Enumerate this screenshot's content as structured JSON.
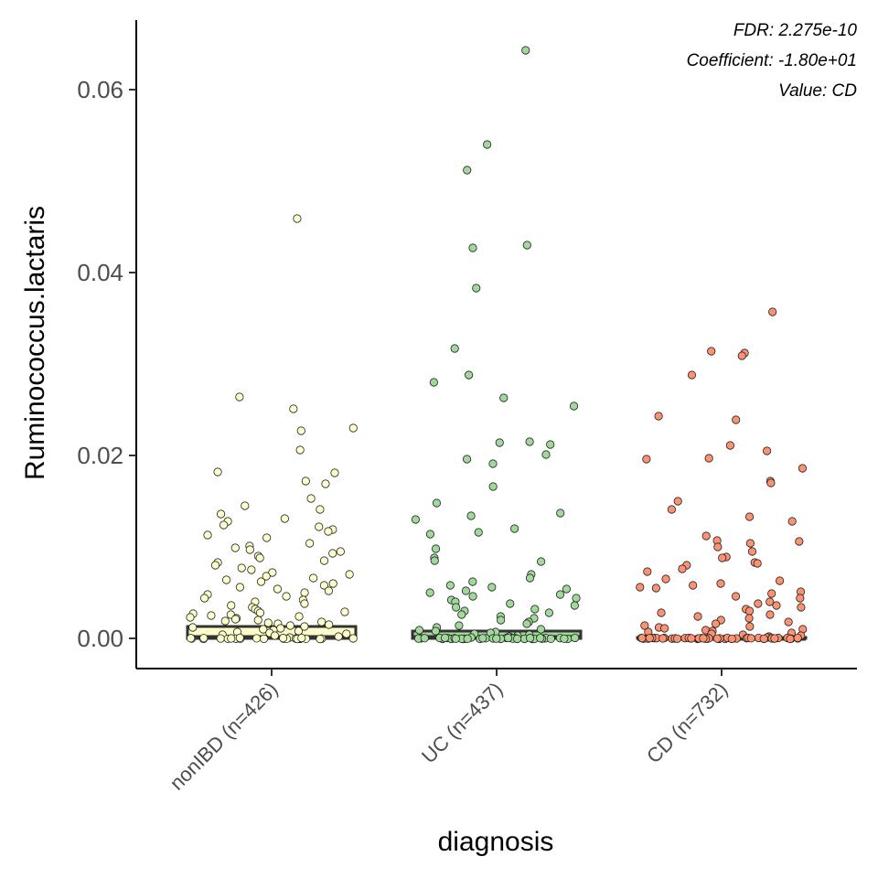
{
  "chart_data": {
    "type": "box",
    "xlabel": "diagnosis",
    "ylabel": "Ruminococcus.lactaris",
    "ylim": [
      -0.0033,
      0.0676
    ],
    "yticks": [
      0.0,
      0.02,
      0.04,
      0.06
    ],
    "ytick_labels": [
      "0.00",
      "0.02",
      "0.04",
      "0.06"
    ],
    "annotations": [
      "FDR: 2.275e-10",
      "Coefficient: -1.80e+01",
      "Value: CD"
    ],
    "legend": "none",
    "grid": false,
    "categories": [
      "nonIBD (n=426)",
      "UC (n=437)",
      "CD (n=732)"
    ],
    "series": [
      {
        "category": "nonIBD (n=426)",
        "fill": "#ffffcc",
        "box": {
          "q1": 0.0,
          "median": 0.0001,
          "q3": 0.0013
        },
        "points": [
          0.0459,
          0.0264,
          0.0251,
          0.023,
          0.0227,
          0.0206,
          0.0182,
          0.0181,
          0.0172,
          0.0169,
          0.0153,
          0.0145,
          0.0141,
          0.0136,
          0.0131,
          0.0128,
          0.0124,
          0.0122,
          0.0119,
          0.0117,
          0.0113,
          0.011,
          0.0104,
          0.0101,
          0.0099,
          0.0097,
          0.0095,
          0.0093,
          0.009,
          0.0088,
          0.0085,
          0.0083,
          0.008,
          0.0077,
          0.0075,
          0.0072,
          0.007,
          0.0068,
          0.0066,
          0.0064,
          0.0062,
          0.006,
          0.0058,
          0.0056,
          0.0054,
          0.0052,
          0.005,
          0.0048,
          0.0046,
          0.0044,
          0.0042,
          0.004,
          0.0038,
          0.0036,
          0.0034,
          0.0032,
          0.003,
          0.0029,
          0.0028,
          0.0027,
          0.0026,
          0.0025,
          0.0024,
          0.0023,
          0.0022,
          0.0021,
          0.002,
          0.0019,
          0.0018,
          0.0017,
          0.0016,
          0.0015,
          0.0014,
          0.0013,
          0.0012,
          0.0011,
          0.001,
          0.0009,
          0.0008,
          0.0007,
          0.0006,
          0.0005,
          0.0004,
          0.0003,
          0.0002,
          0.0001,
          0.0,
          0.0,
          0.0,
          0.0,
          0.0,
          0.0,
          0.0,
          0.0,
          0.0,
          0.0,
          0.0,
          0.0,
          0.0,
          0.0,
          0.0,
          0.0,
          0.0,
          0.0,
          0.0,
          0.0,
          0.0,
          0.0,
          0.0,
          0.0,
          0.0
        ]
      },
      {
        "category": "UC (n=437)",
        "fill": "#a1d99b",
        "box": {
          "q1": 0.0,
          "median": 0.0001,
          "q3": 0.0008
        },
        "points": [
          0.0643,
          0.054,
          0.0512,
          0.043,
          0.0427,
          0.0383,
          0.0317,
          0.0288,
          0.028,
          0.0263,
          0.0254,
          0.0215,
          0.0214,
          0.0212,
          0.0201,
          0.0196,
          0.0191,
          0.0166,
          0.0148,
          0.0137,
          0.0134,
          0.013,
          0.012,
          0.0116,
          0.0114,
          0.0098,
          0.0088,
          0.0085,
          0.0084,
          0.007,
          0.0066,
          0.0062,
          0.0058,
          0.0056,
          0.0054,
          0.0052,
          0.005,
          0.0048,
          0.0046,
          0.0044,
          0.0042,
          0.004,
          0.0038,
          0.0036,
          0.0034,
          0.0032,
          0.003,
          0.0028,
          0.0026,
          0.0024,
          0.0022,
          0.002,
          0.0018,
          0.0016,
          0.0014,
          0.0012,
          0.001,
          0.0009,
          0.0008,
          0.0007,
          0.0006,
          0.0005,
          0.0004,
          0.0003,
          0.0002,
          0.0001,
          0.0,
          0.0,
          0.0,
          0.0,
          0.0,
          0.0,
          0.0,
          0.0,
          0.0,
          0.0,
          0.0,
          0.0,
          0.0,
          0.0,
          0.0,
          0.0,
          0.0,
          0.0,
          0.0,
          0.0,
          0.0,
          0.0,
          0.0,
          0.0,
          0.0,
          0.0,
          0.0,
          0.0,
          0.0,
          0.0,
          0.0,
          0.0,
          0.0,
          0.0,
          0.0,
          0.0,
          0.0,
          0.0,
          0.0
        ]
      },
      {
        "category": "CD (n=732)",
        "fill": "#fc9272",
        "box": {
          "q1": 0.0,
          "median": 0.0,
          "q3": 0.0001
        },
        "points": [
          0.0357,
          0.0314,
          0.0312,
          0.0309,
          0.0288,
          0.0243,
          0.0239,
          0.0211,
          0.0205,
          0.0197,
          0.0196,
          0.0186,
          0.0172,
          0.017,
          0.015,
          0.0141,
          0.0133,
          0.0128,
          0.0112,
          0.0107,
          0.0106,
          0.0104,
          0.01,
          0.0095,
          0.0089,
          0.0088,
          0.0083,
          0.0082,
          0.008,
          0.0076,
          0.0073,
          0.0065,
          0.0063,
          0.006,
          0.0058,
          0.0056,
          0.0055,
          0.0051,
          0.0049,
          0.0046,
          0.0044,
          0.004,
          0.0038,
          0.0036,
          0.0034,
          0.0032,
          0.003,
          0.0028,
          0.0026,
          0.0024,
          0.0022,
          0.002,
          0.0018,
          0.0016,
          0.0014,
          0.0013,
          0.0012,
          0.0011,
          0.001,
          0.0009,
          0.0008,
          0.0007,
          0.0006,
          0.0005,
          0.0004,
          0.0003,
          0.0002,
          0.0001,
          0.0,
          0.0,
          0.0,
          0.0,
          0.0,
          0.0,
          0.0,
          0.0,
          0.0,
          0.0,
          0.0,
          0.0,
          0.0,
          0.0,
          0.0,
          0.0,
          0.0,
          0.0,
          0.0,
          0.0,
          0.0,
          0.0,
          0.0,
          0.0,
          0.0,
          0.0,
          0.0,
          0.0,
          0.0,
          0.0,
          0.0,
          0.0,
          0.0,
          0.0,
          0.0,
          0.0,
          0.0,
          0.0,
          0.0,
          0.0,
          0.0,
          0.0,
          0.0,
          0.0,
          0.0,
          0.0,
          0.0
        ]
      }
    ]
  }
}
